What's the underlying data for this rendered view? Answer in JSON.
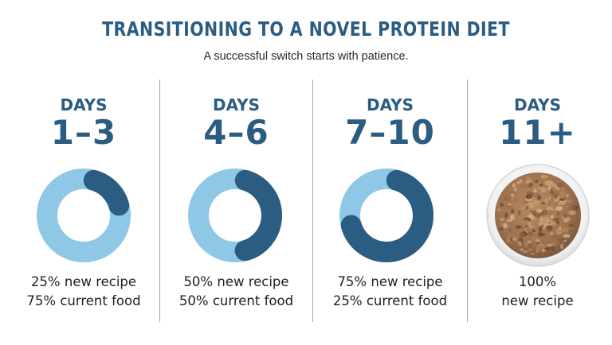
{
  "header": {
    "title": "TRANSITIONING TO A NOVEL PROTEIN DIET",
    "subtitle": "A successful switch starts with patience."
  },
  "colors": {
    "primary": "#2b5c82",
    "light": "#8fc8e6",
    "divider": "#a8a8a8",
    "text": "#1f1f1f"
  },
  "stages": [
    {
      "label": "DAYS",
      "range": "1–3",
      "new_percent": 25,
      "line1": "25% new recipe",
      "line2": "75% current food"
    },
    {
      "label": "DAYS",
      "range": "4–6",
      "new_percent": 50,
      "line1": "50% new recipe",
      "line2": "50% current food"
    },
    {
      "label": "DAYS",
      "range": "7–10",
      "new_percent": 75,
      "line1": "75% new recipe",
      "line2": "25% current food"
    },
    {
      "label": "DAYS",
      "range": "11+",
      "new_percent": 100,
      "line1": "100%",
      "line2": "new recipe"
    }
  ]
}
